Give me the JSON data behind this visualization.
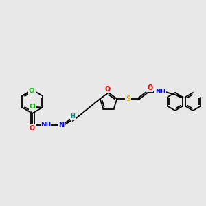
{
  "background_color": "#e8e8e8",
  "bond_color": "#000000",
  "atom_colors": {
    "Cl": "#00bb00",
    "O": "#ff0000",
    "N": "#0000ee",
    "S": "#ccaa00",
    "H": "#008888",
    "C": "#000000"
  },
  "figsize": [
    3.0,
    3.0
  ],
  "dpi": 100,
  "lw": 1.3
}
